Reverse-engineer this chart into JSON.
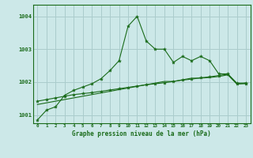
{
  "title": "Graphe pression niveau de la mer (hPa)",
  "background_color": "#cce8e8",
  "grid_color": "#aacccc",
  "line_color": "#1a6b1a",
  "x_labels": [
    "0",
    "1",
    "2",
    "3",
    "4",
    "5",
    "6",
    "7",
    "8",
    "9",
    "10",
    "11",
    "12",
    "13",
    "14",
    "15",
    "16",
    "17",
    "18",
    "19",
    "20",
    "21",
    "22",
    "23"
  ],
  "ylim": [
    1000.75,
    1004.35
  ],
  "yticks": [
    1001,
    1002,
    1003,
    1004
  ],
  "series1": [
    1000.85,
    1001.15,
    1001.25,
    1001.6,
    1001.75,
    1001.85,
    1001.95,
    1002.1,
    1002.35,
    1002.65,
    1003.7,
    1004.0,
    1003.25,
    1003.0,
    1003.0,
    1002.6,
    1002.78,
    1002.65,
    1002.78,
    1002.65,
    1002.25,
    1002.25,
    1001.95,
    1001.95
  ],
  "series2": [
    1001.42,
    1001.47,
    1001.52,
    1001.57,
    1001.62,
    1001.65,
    1001.68,
    1001.72,
    1001.76,
    1001.8,
    1001.84,
    1001.88,
    1001.92,
    1001.95,
    1001.98,
    1002.02,
    1002.06,
    1002.09,
    1002.13,
    1002.16,
    1002.2,
    1002.24,
    1001.97,
    1001.97
  ],
  "series3": [
    1001.32,
    1001.37,
    1001.42,
    1001.47,
    1001.52,
    1001.57,
    1001.62,
    1001.67,
    1001.72,
    1001.77,
    1001.82,
    1001.87,
    1001.92,
    1001.97,
    1002.02,
    1002.02,
    1002.07,
    1002.12,
    1002.12,
    1002.14,
    1002.17,
    1002.22,
    1001.94,
    1001.97
  ]
}
